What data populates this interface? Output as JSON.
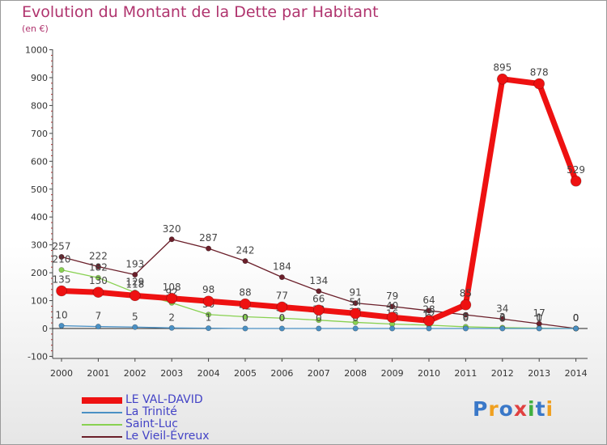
{
  "chart_data": {
    "type": "line",
    "title": "Evolution du Montant de la Dette par Habitant",
    "ylabel": "(en €)",
    "xlabel": "",
    "categories": [
      "2000",
      "2001",
      "2002",
      "2003",
      "2004",
      "2005",
      "2006",
      "2007",
      "2008",
      "2009",
      "2010",
      "2011",
      "2012",
      "2013",
      "2014"
    ],
    "ylim": [
      -100,
      1000
    ],
    "yticks": [
      -100,
      0,
      100,
      200,
      300,
      400,
      500,
      600,
      700,
      800,
      900,
      1000
    ],
    "grid": false,
    "legend_position": "bottom-left",
    "series": [
      {
        "name": "Le Vieil-Évreux",
        "color": "#6b1f2a",
        "values": [
          257,
          222,
          193,
          320,
          287,
          242,
          184,
          134,
          91,
          79,
          64,
          49,
          34,
          17,
          0
        ],
        "labels": [
          "257",
          "222",
          "193",
          "320",
          "287",
          "242",
          "184",
          "134",
          "91",
          "79",
          "64",
          "",
          "34",
          "17",
          "0"
        ]
      },
      {
        "name": "Saint-Luc",
        "color": "#88d150",
        "values": [
          210,
          182,
          129,
          92,
          50,
          42,
          37,
          30,
          22,
          16,
          12,
          6,
          3,
          1,
          0
        ],
        "labels": [
          "210",
          "182",
          "129",
          "92",
          "50",
          "42",
          "37",
          "30",
          "22",
          "16",
          "12",
          "6",
          "3",
          "1",
          "0"
        ]
      },
      {
        "name": "La Trinité",
        "color": "#4a90c4",
        "values": [
          10,
          7,
          5,
          2,
          1,
          0,
          0,
          0,
          0,
          0,
          0,
          0,
          0,
          0,
          0
        ],
        "labels": [
          "10",
          "7",
          "5",
          "2",
          "1",
          "0",
          "0",
          "0",
          "0",
          "0",
          "0",
          "0",
          "0",
          "0",
          "0"
        ]
      },
      {
        "name": "LE VAL-DAVID",
        "color": "#ee1111",
        "values": [
          135,
          130,
          118,
          108,
          98,
          88,
          77,
          66,
          54,
          40,
          28,
          85,
          895,
          878,
          529
        ],
        "labels": [
          "135",
          "130",
          "118",
          "108",
          "98",
          "88",
          "77",
          "66",
          "54",
          "40",
          "28",
          "85",
          "895",
          "878",
          "529"
        ]
      }
    ],
    "legend": [
      {
        "name": "LE VAL-DAVID",
        "color": "#ee1111"
      },
      {
        "name": "La Trinité",
        "color": "#4a90c4"
      },
      {
        "name": "Saint-Luc",
        "color": "#88d150"
      },
      {
        "name": "Le Vieil-Évreux",
        "color": "#6b1f2a"
      }
    ]
  },
  "logo": {
    "text": "Proxiti",
    "letters": [
      "P",
      "r",
      "o",
      "x",
      "i",
      "t",
      "i"
    ],
    "colors": [
      "#3a78c8",
      "#f0a020",
      "#3a78c8",
      "#e04040",
      "#40b040",
      "#3a78c8",
      "#f0a020"
    ]
  }
}
